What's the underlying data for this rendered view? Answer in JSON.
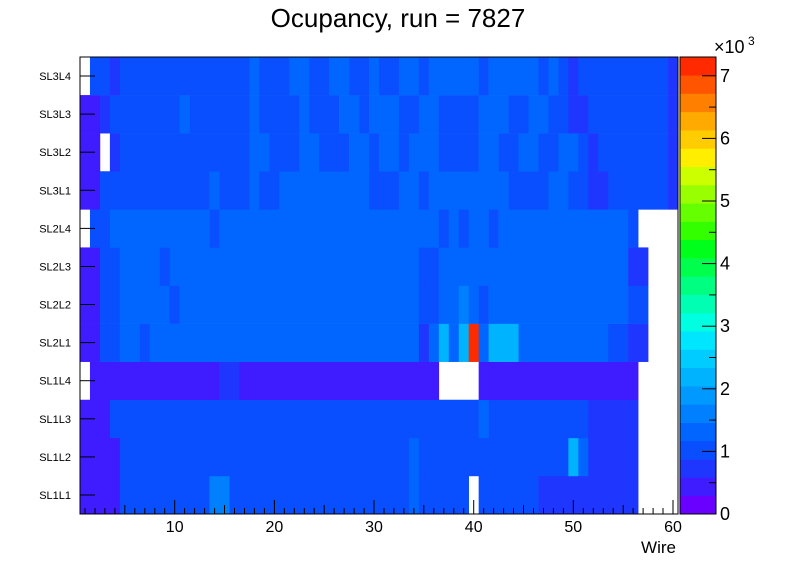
{
  "chart_data": {
    "type": "heatmap",
    "title": "Ocupancy, run = 7827",
    "xlabel": "Wire",
    "ylabel": "",
    "x_range": [
      0.5,
      60.5
    ],
    "x_ticks": [
      10,
      20,
      30,
      40,
      50,
      60
    ],
    "y_categories": [
      "SL1L1",
      "SL1L2",
      "SL1L3",
      "SL1L4",
      "SL2L1",
      "SL2L2",
      "SL2L3",
      "SL2L4",
      "SL3L1",
      "SL3L2",
      "SL3L3",
      "SL3L4"
    ],
    "z_range": [
      0,
      7300
    ],
    "z_multiplier": "×10",
    "z_multiplier_exp": "3",
    "z_ticks": [
      "0",
      "1",
      "2",
      "3",
      "4",
      "5",
      "6",
      "7"
    ],
    "palette": [
      "#6a00ff",
      "#3f1bff",
      "#1f36ff",
      "#0a4fff",
      "#0066ff",
      "#0080ff",
      "#0099ff",
      "#00b3ff",
      "#00ccff",
      "#00e6ff",
      "#00ffe0",
      "#00ffb3",
      "#00ff80",
      "#00ff4d",
      "#00ff1a",
      "#33ff00",
      "#66ff00",
      "#99ff00",
      "#ccff00",
      "#ffee00",
      "#ffcc00",
      "#ffaa00",
      "#ff8000",
      "#ff5500",
      "#ff2a00"
    ],
    "rows": [
      {
        "layer": "SL1L1",
        "segments": [
          {
            "from": 1,
            "to": 4,
            "value": 500
          },
          {
            "from": 5,
            "to": 13,
            "value": 1050
          },
          {
            "from": 14,
            "to": 15,
            "value": 1750
          },
          {
            "from": 16,
            "to": 33,
            "value": 1050
          },
          {
            "from": 34,
            "to": 34,
            "value": 1300
          },
          {
            "from": 35,
            "to": 39,
            "value": 1050
          },
          {
            "from": 41,
            "to": 46,
            "value": 1050
          },
          {
            "from": 47,
            "to": 56,
            "value": 600
          }
        ]
      },
      {
        "layer": "SL1L2",
        "segments": [
          {
            "from": 1,
            "to": 4,
            "value": 500
          },
          {
            "from": 5,
            "to": 33,
            "value": 1050
          },
          {
            "from": 34,
            "to": 34,
            "value": 1300
          },
          {
            "from": 35,
            "to": 49,
            "value": 1050
          },
          {
            "from": 50,
            "to": 50,
            "value": 2200
          },
          {
            "from": 51,
            "to": 51,
            "value": 1300
          },
          {
            "from": 52,
            "to": 56,
            "value": 600
          }
        ]
      },
      {
        "layer": "SL1L3",
        "segments": [
          {
            "from": 1,
            "to": 3,
            "value": 500
          },
          {
            "from": 4,
            "to": 40,
            "value": 1050
          },
          {
            "from": 41,
            "to": 41,
            "value": 1300
          },
          {
            "from": 42,
            "to": 51,
            "value": 1050
          },
          {
            "from": 52,
            "to": 53,
            "value": 800
          },
          {
            "from": 54,
            "to": 56,
            "value": 600
          }
        ]
      },
      {
        "layer": "SL1L4",
        "segments": [
          {
            "from": 2,
            "to": 14,
            "value": 450
          },
          {
            "from": 15,
            "to": 16,
            "value": 800
          },
          {
            "from": 17,
            "to": 36,
            "value": 450
          },
          {
            "from": 41,
            "to": 56,
            "value": 450
          }
        ]
      },
      {
        "layer": "SL2L1",
        "segments": [
          {
            "from": 1,
            "to": 2,
            "value": 500
          },
          {
            "from": 3,
            "to": 4,
            "value": 1050
          },
          {
            "from": 5,
            "to": 6,
            "value": 1300
          },
          {
            "from": 7,
            "to": 7,
            "value": 1050
          },
          {
            "from": 8,
            "to": 34,
            "value": 1300
          },
          {
            "from": 35,
            "to": 35,
            "value": 650
          },
          {
            "from": 36,
            "to": 36,
            "value": 1300
          },
          {
            "from": 37,
            "to": 37,
            "value": 2200
          },
          {
            "from": 38,
            "to": 38,
            "value": 1300
          },
          {
            "from": 39,
            "to": 39,
            "value": 2200
          },
          {
            "from": 40,
            "to": 40,
            "value": 7300
          },
          {
            "from": 41,
            "to": 41,
            "value": 1300
          },
          {
            "from": 42,
            "to": 44,
            "value": 2200
          },
          {
            "from": 45,
            "to": 53,
            "value": 1300
          },
          {
            "from": 54,
            "to": 55,
            "value": 1050
          },
          {
            "from": 56,
            "to": 57,
            "value": 600
          }
        ]
      },
      {
        "layer": "SL2L2",
        "segments": [
          {
            "from": 1,
            "to": 2,
            "value": 500
          },
          {
            "from": 3,
            "to": 4,
            "value": 1050
          },
          {
            "from": 5,
            "to": 9,
            "value": 1300
          },
          {
            "from": 10,
            "to": 10,
            "value": 1050
          },
          {
            "from": 11,
            "to": 34,
            "value": 1300
          },
          {
            "from": 35,
            "to": 36,
            "value": 1050
          },
          {
            "from": 37,
            "to": 38,
            "value": 1300
          },
          {
            "from": 39,
            "to": 39,
            "value": 1750
          },
          {
            "from": 40,
            "to": 40,
            "value": 1300
          },
          {
            "from": 41,
            "to": 41,
            "value": 1050
          },
          {
            "from": 42,
            "to": 55,
            "value": 1300
          },
          {
            "from": 56,
            "to": 57,
            "value": 1050
          }
        ]
      },
      {
        "layer": "SL2L3",
        "segments": [
          {
            "from": 1,
            "to": 2,
            "value": 500
          },
          {
            "from": 3,
            "to": 4,
            "value": 1050
          },
          {
            "from": 5,
            "to": 8,
            "value": 1300
          },
          {
            "from": 9,
            "to": 9,
            "value": 1050
          },
          {
            "from": 10,
            "to": 34,
            "value": 1300
          },
          {
            "from": 35,
            "to": 36,
            "value": 1050
          },
          {
            "from": 37,
            "to": 55,
            "value": 1300
          },
          {
            "from": 56,
            "to": 57,
            "value": 600
          }
        ]
      },
      {
        "layer": "SL2L4",
        "segments": [
          {
            "from": 2,
            "to": 3,
            "value": 1050
          },
          {
            "from": 4,
            "to": 13,
            "value": 1300
          },
          {
            "from": 14,
            "to": 14,
            "value": 1050
          },
          {
            "from": 15,
            "to": 36,
            "value": 1300
          },
          {
            "from": 37,
            "to": 37,
            "value": 1050
          },
          {
            "from": 38,
            "to": 38,
            "value": 1300
          },
          {
            "from": 39,
            "to": 39,
            "value": 1050
          },
          {
            "from": 40,
            "to": 41,
            "value": 1300
          },
          {
            "from": 42,
            "to": 42,
            "value": 1050
          },
          {
            "from": 43,
            "to": 55,
            "value": 1300
          },
          {
            "from": 56,
            "to": 56,
            "value": 1050
          }
        ]
      },
      {
        "layer": "SL3L1",
        "segments": [
          {
            "from": 1,
            "to": 2,
            "value": 500
          },
          {
            "from": 3,
            "to": 13,
            "value": 1050
          },
          {
            "from": 14,
            "to": 14,
            "value": 1300
          },
          {
            "from": 15,
            "to": 17,
            "value": 1050
          },
          {
            "from": 18,
            "to": 18,
            "value": 1300
          },
          {
            "from": 19,
            "to": 20,
            "value": 1050
          },
          {
            "from": 21,
            "to": 29,
            "value": 1300
          },
          {
            "from": 30,
            "to": 32,
            "value": 1050
          },
          {
            "from": 33,
            "to": 34,
            "value": 1300
          },
          {
            "from": 35,
            "to": 35,
            "value": 1050
          },
          {
            "from": 36,
            "to": 43,
            "value": 1300
          },
          {
            "from": 44,
            "to": 47,
            "value": 1050
          },
          {
            "from": 48,
            "to": 49,
            "value": 1300
          },
          {
            "from": 50,
            "to": 51,
            "value": 1050
          },
          {
            "from": 52,
            "to": 53,
            "value": 650
          },
          {
            "from": 54,
            "to": 59,
            "value": 1050
          },
          {
            "from": 60,
            "to": 60,
            "value": 600
          }
        ]
      },
      {
        "layer": "SL3L2",
        "segments": [
          {
            "from": 1,
            "to": 2,
            "value": 500
          },
          {
            "from": 4,
            "to": 4,
            "value": 650
          },
          {
            "from": 5,
            "to": 17,
            "value": 1050
          },
          {
            "from": 18,
            "to": 19,
            "value": 1300
          },
          {
            "from": 20,
            "to": 22,
            "value": 1050
          },
          {
            "from": 23,
            "to": 24,
            "value": 1300
          },
          {
            "from": 25,
            "to": 27,
            "value": 1050
          },
          {
            "from": 28,
            "to": 29,
            "value": 1300
          },
          {
            "from": 30,
            "to": 30,
            "value": 1050
          },
          {
            "from": 31,
            "to": 32,
            "value": 1300
          },
          {
            "from": 33,
            "to": 33,
            "value": 1050
          },
          {
            "from": 34,
            "to": 36,
            "value": 1300
          },
          {
            "from": 37,
            "to": 40,
            "value": 1050
          },
          {
            "from": 41,
            "to": 42,
            "value": 1300
          },
          {
            "from": 43,
            "to": 44,
            "value": 1050
          },
          {
            "from": 45,
            "to": 46,
            "value": 1300
          },
          {
            "from": 47,
            "to": 48,
            "value": 1050
          },
          {
            "from": 49,
            "to": 50,
            "value": 1300
          },
          {
            "from": 51,
            "to": 51,
            "value": 1050
          },
          {
            "from": 52,
            "to": 52,
            "value": 650
          },
          {
            "from": 53,
            "to": 59,
            "value": 1050
          },
          {
            "from": 60,
            "to": 60,
            "value": 600
          }
        ]
      },
      {
        "layer": "SL3L3",
        "segments": [
          {
            "from": 1,
            "to": 2,
            "value": 500
          },
          {
            "from": 3,
            "to": 3,
            "value": 650
          },
          {
            "from": 4,
            "to": 10,
            "value": 1050
          },
          {
            "from": 11,
            "to": 11,
            "value": 1300
          },
          {
            "from": 12,
            "to": 17,
            "value": 1050
          },
          {
            "from": 18,
            "to": 18,
            "value": 1300
          },
          {
            "from": 19,
            "to": 22,
            "value": 1050
          },
          {
            "from": 23,
            "to": 23,
            "value": 1300
          },
          {
            "from": 24,
            "to": 26,
            "value": 1050
          },
          {
            "from": 27,
            "to": 28,
            "value": 1300
          },
          {
            "from": 29,
            "to": 29,
            "value": 1050
          },
          {
            "from": 30,
            "to": 32,
            "value": 1300
          },
          {
            "from": 33,
            "to": 34,
            "value": 1050
          },
          {
            "from": 35,
            "to": 36,
            "value": 1300
          },
          {
            "from": 37,
            "to": 40,
            "value": 1050
          },
          {
            "from": 41,
            "to": 43,
            "value": 1300
          },
          {
            "from": 44,
            "to": 45,
            "value": 1050
          },
          {
            "from": 46,
            "to": 47,
            "value": 1300
          },
          {
            "from": 48,
            "to": 49,
            "value": 1050
          },
          {
            "from": 50,
            "to": 51,
            "value": 650
          },
          {
            "from": 52,
            "to": 59,
            "value": 1050
          },
          {
            "from": 60,
            "to": 60,
            "value": 600
          }
        ]
      },
      {
        "layer": "SL3L4",
        "segments": [
          {
            "from": 2,
            "to": 3,
            "value": 1050
          },
          {
            "from": 4,
            "to": 4,
            "value": 650
          },
          {
            "from": 5,
            "to": 17,
            "value": 1050
          },
          {
            "from": 18,
            "to": 18,
            "value": 1300
          },
          {
            "from": 19,
            "to": 21,
            "value": 1050
          },
          {
            "from": 22,
            "to": 23,
            "value": 1300
          },
          {
            "from": 24,
            "to": 25,
            "value": 1050
          },
          {
            "from": 26,
            "to": 27,
            "value": 1300
          },
          {
            "from": 28,
            "to": 29,
            "value": 1050
          },
          {
            "from": 30,
            "to": 30,
            "value": 1300
          },
          {
            "from": 31,
            "to": 32,
            "value": 1050
          },
          {
            "from": 33,
            "to": 34,
            "value": 1300
          },
          {
            "from": 35,
            "to": 35,
            "value": 1050
          },
          {
            "from": 36,
            "to": 40,
            "value": 1300
          },
          {
            "from": 41,
            "to": 41,
            "value": 1050
          },
          {
            "from": 42,
            "to": 46,
            "value": 1300
          },
          {
            "from": 47,
            "to": 47,
            "value": 1050
          },
          {
            "from": 48,
            "to": 48,
            "value": 1300
          },
          {
            "from": 49,
            "to": 49,
            "value": 1050
          },
          {
            "from": 50,
            "to": 50,
            "value": 650
          },
          {
            "from": 51,
            "to": 59,
            "value": 1050
          },
          {
            "from": 60,
            "to": 60,
            "value": 600
          }
        ]
      }
    ]
  }
}
